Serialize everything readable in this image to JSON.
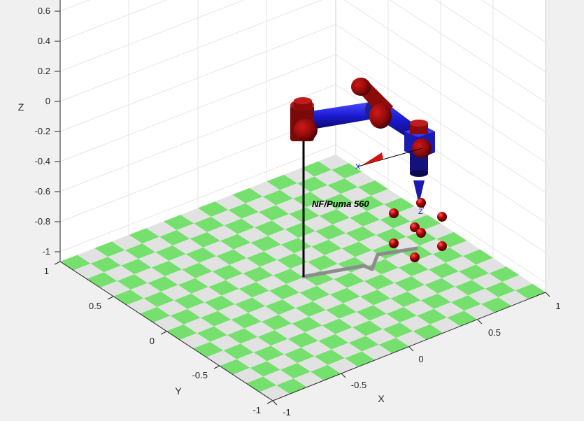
{
  "axes": {
    "z_label": "Z",
    "x_label": "X",
    "y_label": "Y",
    "z_ticks": [
      "0.6",
      "0.4",
      "0.2",
      "0",
      "-0.2",
      "-0.4",
      "-0.6",
      "-0.8",
      "-1"
    ],
    "y_ticks": [
      "1",
      "0.5",
      "0",
      "-0.5",
      "-1"
    ],
    "x_ticks": [
      "-1",
      "-0.5",
      "0",
      "0.5",
      "1"
    ]
  },
  "robot": {
    "name": "NF/Puma 560",
    "triad_x_label": "X",
    "triad_z_label": "Z",
    "link_color": "#1414b4",
    "joint_color": "#8b0a0a"
  },
  "floor": {
    "color_a": "#76e06e",
    "color_b": "#e2e2e2"
  },
  "path_color": "#8c8c8c"
}
